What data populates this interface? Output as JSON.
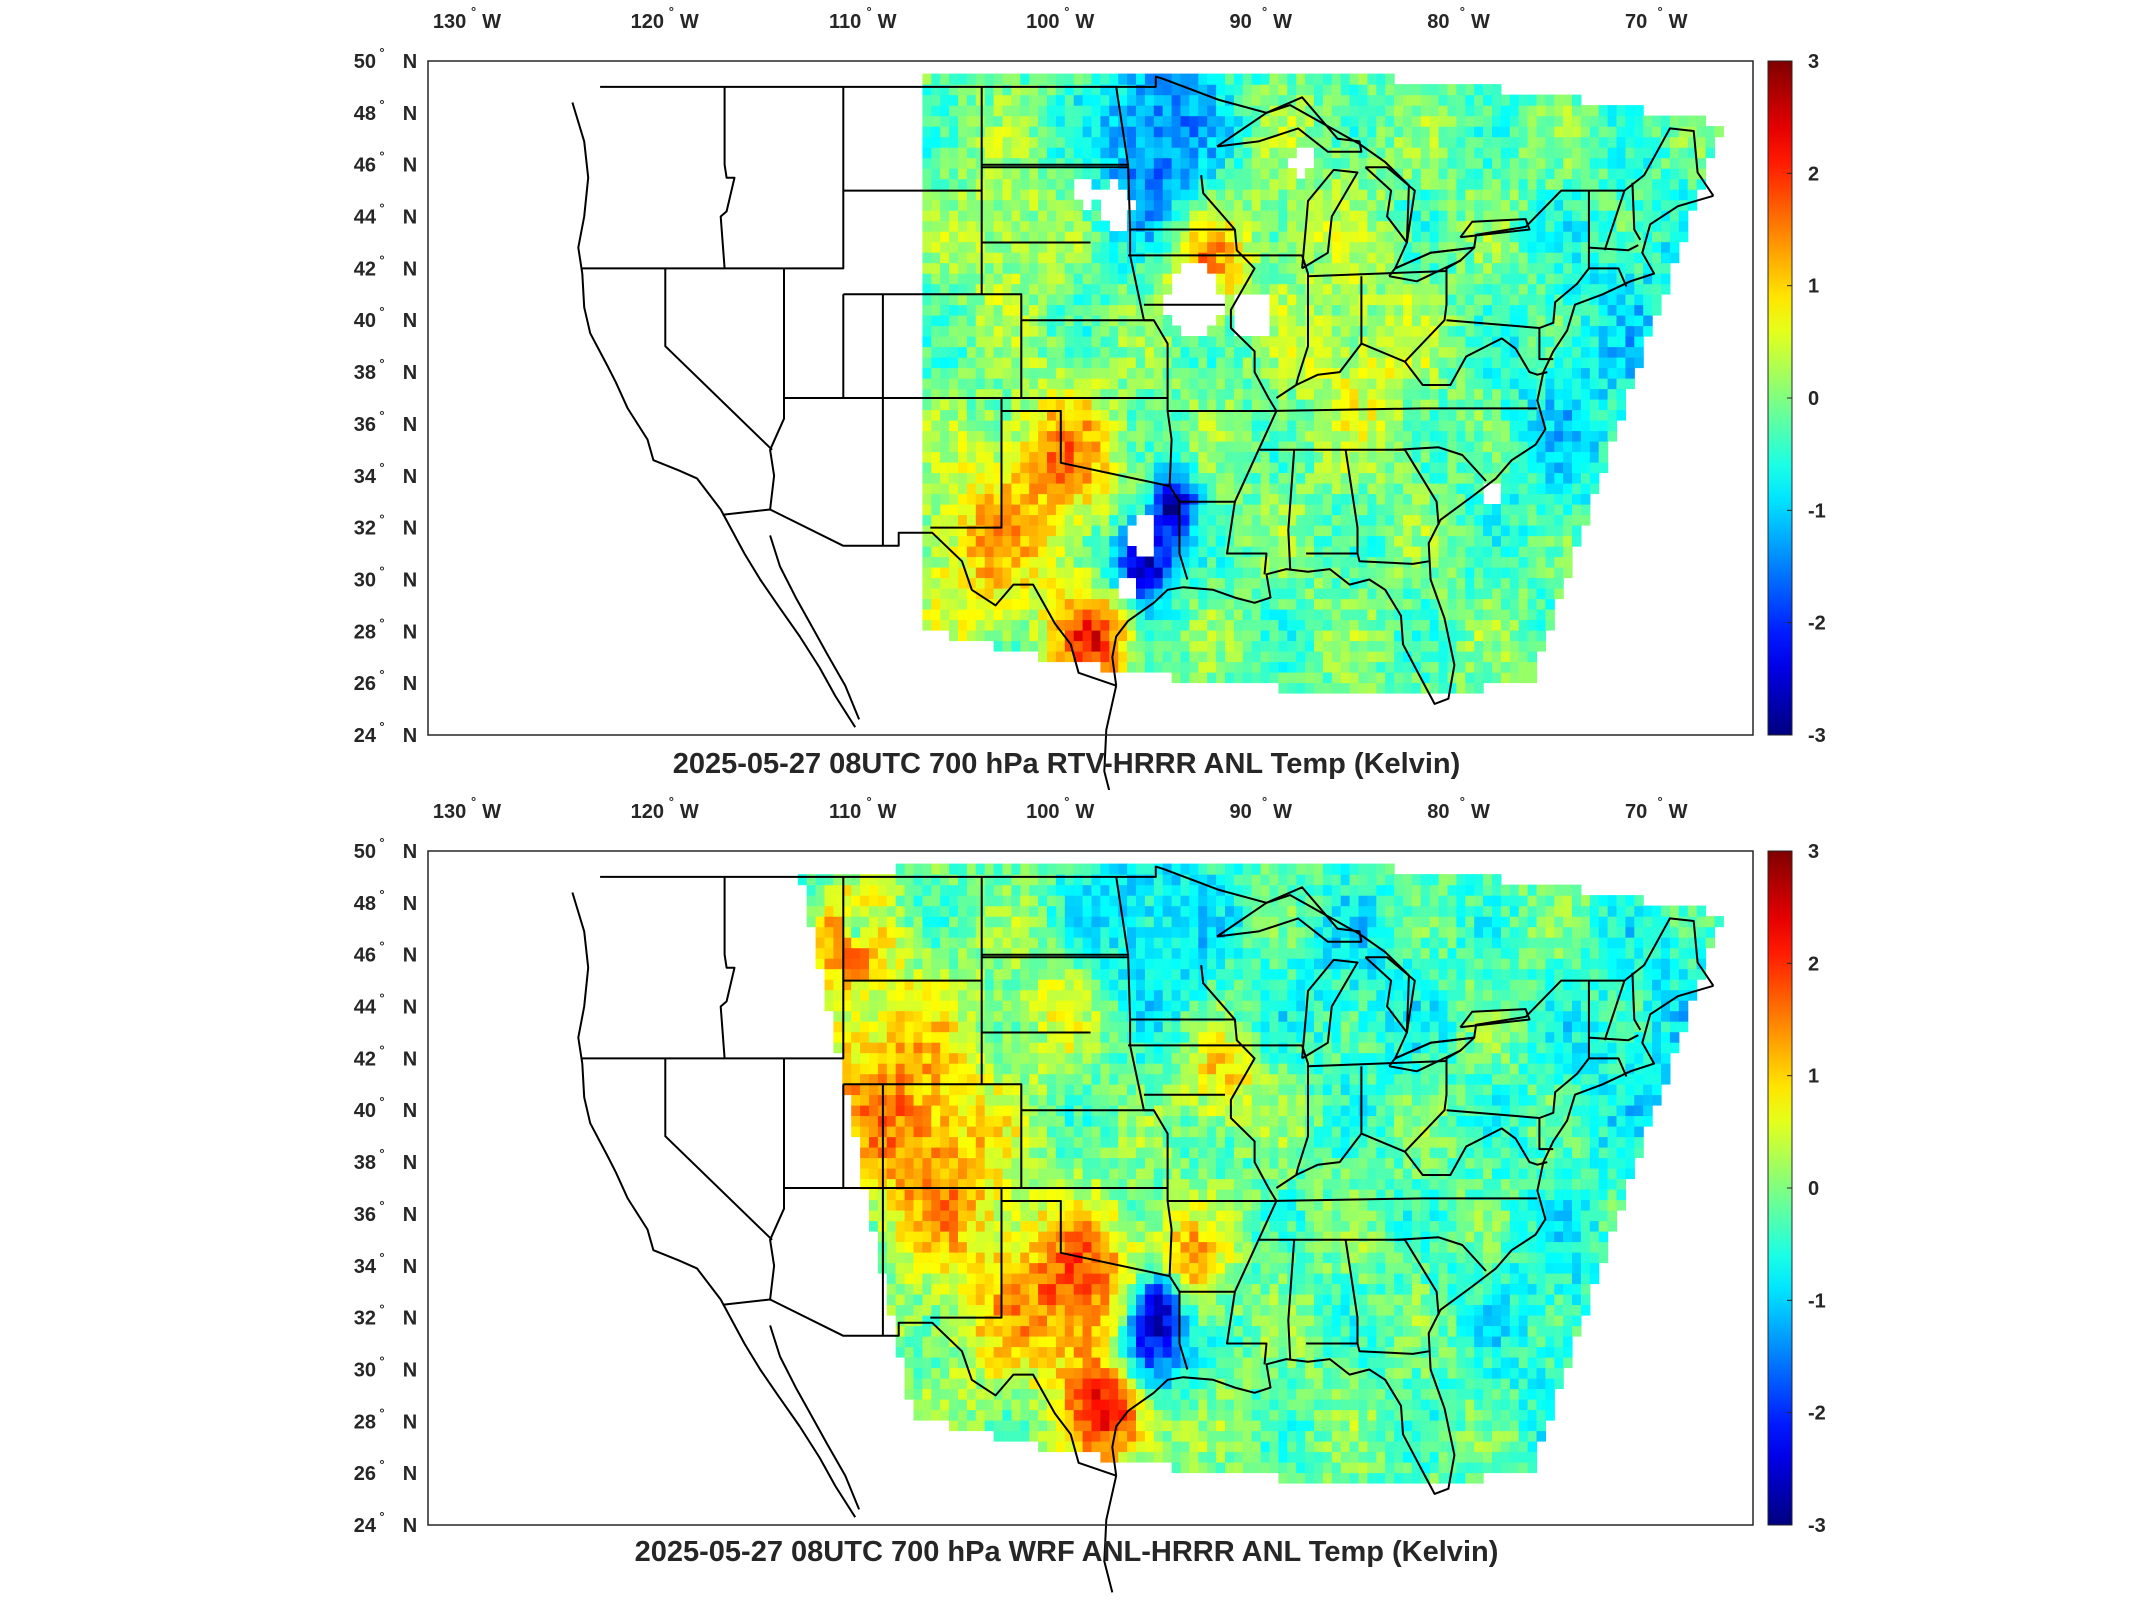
{
  "panels": [
    {
      "id": "rtv",
      "title": "2025-05-27 08UTC 700 hPa RTV-HRRR ANL Temp (Kelvin)"
    },
    {
      "id": "wrf",
      "title": "2025-05-27 08UTC 700 hPa WRF ANL-HRRR ANL Temp (Kelvin)"
    }
  ],
  "lon_ticks": [
    "130",
    "120",
    "110",
    "100",
    "90",
    "80",
    "70"
  ],
  "lon_suffix": "W",
  "lat_ticks": [
    "50",
    "48",
    "46",
    "44",
    "42",
    "40",
    "38",
    "36",
    "34",
    "32",
    "30",
    "28",
    "26",
    "24"
  ],
  "lat_suffix": "N",
  "degree_symbol": "°",
  "colorbar": {
    "min": -3,
    "max": 3,
    "tick_labels": [
      "3",
      "2",
      "1",
      "0",
      "-1",
      "-2",
      "-3"
    ],
    "colormap": "jet",
    "colors": [
      "#00008f",
      "#0000ff",
      "#00ffff",
      "#7fff7f",
      "#ffff00",
      "#ff0000",
      "#800000"
    ]
  },
  "map_extent": {
    "lon_min": -132,
    "lon_max": -65,
    "lat_min": 24,
    "lat_max": 50
  }
}
